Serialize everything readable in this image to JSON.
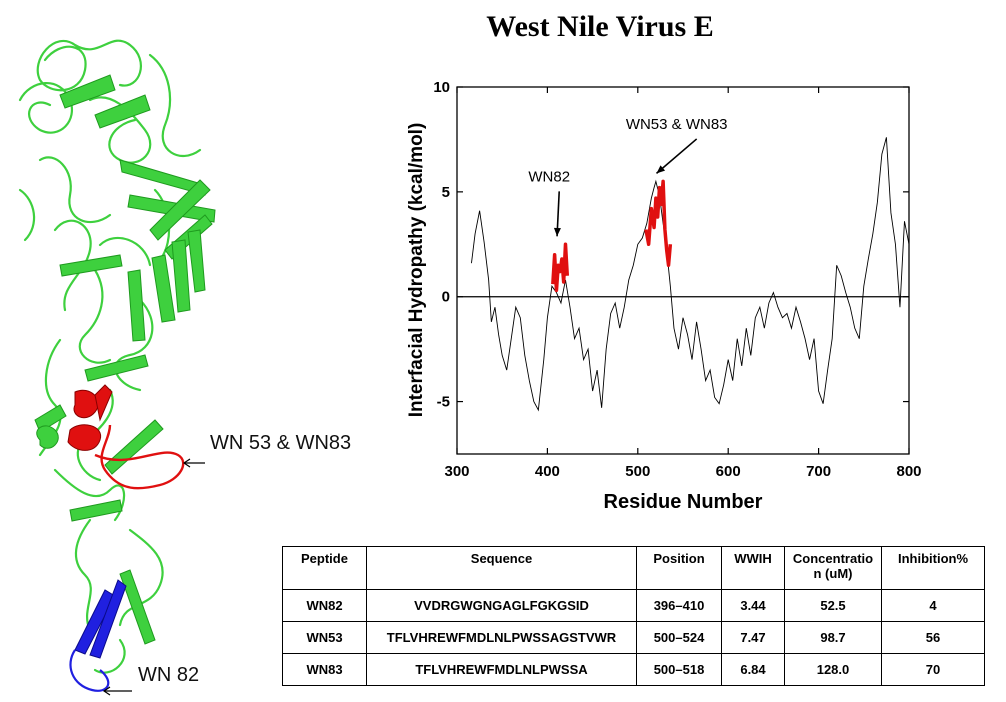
{
  "figure_title": "West Nile Virus E",
  "structure_labels": {
    "loop": "WN 53 & WN83",
    "hairpin": "WN 82"
  },
  "colors": {
    "backbone": "#3ed03e",
    "highlight_red": "#e01010",
    "highlight_blue": "#2020e0"
  },
  "chart_data": {
    "type": "line",
    "title": "",
    "xlabel": "Residue Number",
    "ylabel": "Interfacial Hydropathy (kcal/mol)",
    "xlim": [
      300,
      800
    ],
    "ylim": [
      -7.5,
      10
    ],
    "xticks": [
      300,
      400,
      500,
      600,
      700,
      800
    ],
    "yticks": [
      -5,
      0,
      5,
      10
    ],
    "baseline": 0,
    "x": [
      316,
      320,
      325,
      330,
      335,
      338,
      342,
      346,
      350,
      355,
      360,
      365,
      370,
      375,
      380,
      385,
      390,
      396,
      400,
      405,
      410,
      415,
      420,
      425,
      430,
      435,
      440,
      445,
      450,
      455,
      460,
      465,
      470,
      475,
      480,
      485,
      490,
      495,
      500,
      505,
      510,
      515,
      518,
      520,
      524,
      528,
      532,
      536,
      540,
      545,
      550,
      555,
      560,
      565,
      570,
      575,
      580,
      585,
      590,
      595,
      600,
      605,
      610,
      615,
      620,
      625,
      630,
      635,
      640,
      645,
      650,
      655,
      660,
      665,
      670,
      675,
      680,
      685,
      690,
      695,
      700,
      705,
      710,
      715,
      720,
      725,
      730,
      735,
      740,
      745,
      750,
      755,
      760,
      765,
      770,
      775,
      780,
      785,
      790,
      795,
      800
    ],
    "y": [
      1.6,
      3.0,
      4.1,
      2.6,
      0.8,
      -1.2,
      -0.5,
      -1.8,
      -2.8,
      -3.5,
      -2.0,
      -0.5,
      -1.0,
      -2.8,
      -4.0,
      -5.0,
      -5.4,
      -3.0,
      -1.0,
      0.5,
      0.2,
      -0.3,
      0.8,
      -0.5,
      -2.0,
      -1.5,
      -3.0,
      -2.5,
      -4.5,
      -3.5,
      -5.3,
      -2.5,
      -0.8,
      -0.3,
      -1.5,
      -0.5,
      0.8,
      1.5,
      2.5,
      2.8,
      3.5,
      4.7,
      5.2,
      5.5,
      4.8,
      3.5,
      2.2,
      0.5,
      -1.5,
      -2.5,
      -1.0,
      -1.8,
      -3.0,
      -1.2,
      -2.5,
      -4.0,
      -3.5,
      -4.8,
      -5.1,
      -4.2,
      -3.0,
      -4.0,
      -2.0,
      -3.3,
      -1.5,
      -2.8,
      -1.0,
      -0.5,
      -1.5,
      -0.3,
      0.2,
      -0.5,
      -1.0,
      -0.8,
      -1.5,
      -0.5,
      -1.2,
      -2.0,
      -3.0,
      -2.0,
      -4.5,
      -5.1,
      -3.5,
      -2.0,
      1.5,
      1.0,
      0.2,
      -0.5,
      -1.5,
      -2.0,
      0.5,
      1.8,
      3.0,
      4.5,
      6.8,
      7.6,
      4.0,
      2.5,
      -0.5,
      3.6,
      2.5
    ],
    "series_highlight": [
      {
        "x": [
          406,
          408,
          410,
          412,
          414,
          416,
          418,
          420,
          422
        ],
        "y": [
          0.6,
          2.0,
          0.3,
          1.5,
          1.2,
          1.8,
          0.7,
          2.5,
          1.0
        ]
      },
      {
        "x": [
          509,
          512,
          515,
          518,
          520,
          522,
          524,
          526,
          528,
          530,
          532,
          534,
          536
        ],
        "y": [
          3.2,
          2.5,
          4.2,
          3.3,
          4.7,
          3.8,
          5.2,
          4.4,
          5.5,
          3.2,
          2.2,
          1.5,
          2.5
        ]
      }
    ],
    "annotations": [
      {
        "text": "WN82",
        "x": 402,
        "y": 5.5
      },
      {
        "text": "WN53 & WN83",
        "x": 543,
        "y": 8.0
      }
    ]
  },
  "table": {
    "headers": [
      "Peptide",
      "Sequence",
      "Position",
      "WWIH",
      "Concentratio n (uM)",
      "Inhibition%"
    ],
    "rows": [
      [
        "WN82",
        "VVDRGWGNGAGLFGKGSID",
        "396–410",
        "3.44",
        "52.5",
        "4"
      ],
      [
        "WN53",
        "TFLVHREWFMDLNLPWSSAGSTVWR",
        "500–524",
        "7.47",
        "98.7",
        "56"
      ],
      [
        "WN83",
        "TFLVHREWFMDLNLPWSSA",
        "500–518",
        "6.84",
        "128.0",
        "70"
      ]
    ]
  }
}
